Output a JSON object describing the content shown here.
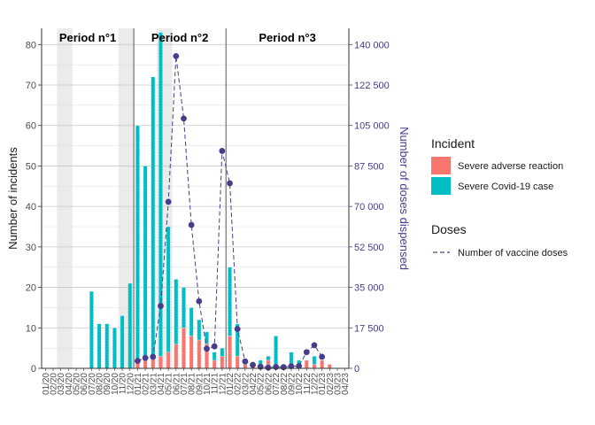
{
  "chart_data": {
    "type": "bar",
    "xlabel": "",
    "ylabel": "Number of incidents",
    "ylabel_right": "Number of doses dispensed",
    "ylim": [
      0,
      84
    ],
    "ylim_right": [
      0,
      147000
    ],
    "yticks": [
      0,
      10,
      20,
      30,
      40,
      50,
      60,
      70,
      80
    ],
    "yticks_right": [
      "0",
      "17 500",
      "35 000",
      "52 500",
      "70 000",
      "87 500",
      "105 000",
      "122 500",
      "140 000"
    ],
    "yticks_right_values": [
      0,
      17500,
      35000,
      52500,
      70000,
      87500,
      105000,
      122500,
      140000
    ],
    "categories": [
      "01/20",
      "02/20",
      "03/20",
      "04/20",
      "05/20",
      "06/20",
      "07/20",
      "08/20",
      "09/20",
      "10/20",
      "11/20",
      "12/20",
      "01/21",
      "02/21",
      "03/21",
      "04/21",
      "05/21",
      "06/21",
      "07/21",
      "08/21",
      "09/21",
      "10/21",
      "11/21",
      "12/21",
      "01/22",
      "02/22",
      "03/22",
      "04/22",
      "05/22",
      "06/22",
      "07/22",
      "08/22",
      "09/22",
      "10/22",
      "11/22",
      "12/22",
      "01/23",
      "02/23",
      "03/23",
      "04/23"
    ],
    "series": [
      {
        "name": "Severe adverse reaction",
        "color": "#f8766d",
        "values": [
          0,
          0,
          0,
          0,
          0,
          0,
          0,
          0,
          0,
          0,
          0,
          0,
          2,
          3,
          3,
          3,
          4,
          6,
          10,
          8,
          7,
          6,
          2,
          3,
          8,
          3,
          1,
          1,
          1,
          2,
          0,
          0,
          0,
          1,
          2,
          1,
          2,
          1,
          0,
          0
        ]
      },
      {
        "name": "Severe Covid-19 case",
        "color": "#00bfc4",
        "values": [
          0,
          0,
          0,
          0,
          0,
          0,
          19,
          11,
          11,
          10,
          13,
          21,
          58,
          47,
          69,
          80,
          31,
          16,
          10,
          7,
          5,
          3,
          2,
          2,
          17,
          8,
          1,
          0,
          1,
          1,
          8,
          1,
          4,
          1,
          0,
          2,
          0,
          0,
          0,
          0
        ]
      }
    ],
    "line_series": {
      "name": "Number of vaccine doses",
      "color": "#483d8b",
      "x_index": [
        12,
        13,
        14,
        15,
        16,
        17,
        18,
        19,
        20,
        21,
        22,
        23,
        24,
        25,
        26,
        27,
        28,
        29,
        30,
        31,
        32,
        33,
        34,
        35,
        36
      ],
      "values": [
        3200,
        4500,
        5000,
        27000,
        72000,
        135000,
        108000,
        62000,
        29000,
        8500,
        9500,
        94000,
        80000,
        17000,
        3000,
        1500,
        700,
        300,
        600,
        500,
        900,
        1000,
        7000,
        10000,
        5000
      ]
    },
    "periods": [
      {
        "label": "Period n°1",
        "start": 0,
        "end": 11.5
      },
      {
        "label": "Period n°2",
        "start": 11.5,
        "end": 23.5
      },
      {
        "label": "Period n°3",
        "start": 23.5,
        "end": 39.5
      }
    ],
    "shaded_months": [
      "03/20",
      "04/20",
      "11/20",
      "12/20",
      "04/21",
      "05/21"
    ],
    "grid": true,
    "legend_position": "right"
  },
  "legend": {
    "incident_title": "Incident",
    "incident_items": [
      "Severe adverse reaction",
      "Severe Covid-19 case"
    ],
    "doses_title": "Doses",
    "doses_item": "Number of vaccine doses"
  }
}
